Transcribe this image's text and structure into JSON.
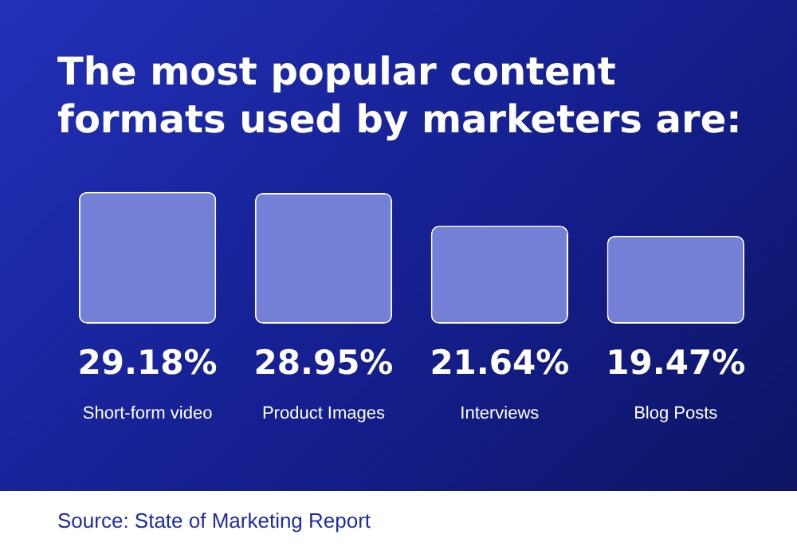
{
  "chart_data": {
    "type": "bar",
    "title": "The most popular content formats used by marketers are:",
    "categories": [
      "Short-form video",
      "Product Images",
      "Interviews",
      "Blog Posts"
    ],
    "values": [
      29.18,
      28.95,
      21.64,
      19.47
    ],
    "value_labels": [
      "29.18%",
      "28.95%",
      "21.64%",
      "19.47%"
    ],
    "color": "#7480d6",
    "ylim": [
      0,
      30
    ],
    "tick_labels": "x",
    "grid": false,
    "legend": false,
    "annotations": [
      "Source: State of Marketing Report"
    ]
  }
}
